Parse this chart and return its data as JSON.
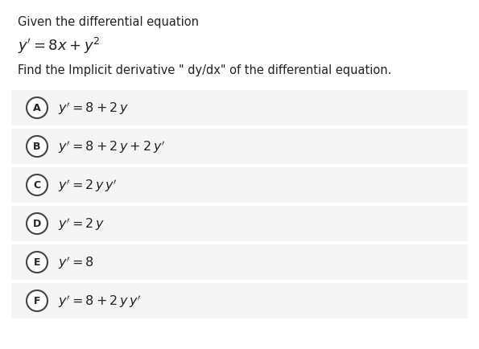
{
  "background_color": "#ffffff",
  "header_text": "Given the differential equation",
  "question": "Find the Implicit derivative \" dy/dx\" of the differential equation.",
  "options": [
    {
      "label": "A",
      "math": "y' = 8 + 2\\,y"
    },
    {
      "label": "B",
      "math": "y' = 8 + 2\\,y + 2\\,y'"
    },
    {
      "label": "C",
      "math": "y' = 2\\,y\\,y'"
    },
    {
      "label": "D",
      "math": "y' = 2\\,y"
    },
    {
      "label": "E",
      "math": "y' = 8"
    },
    {
      "label": "F",
      "math": "y' = 8 + 2\\,y\\,y'"
    }
  ],
  "option_bg_color": "#efefef",
  "option_row_bg": "#f5f5f5",
  "circle_color": "#ffffff",
  "circle_edge_color": "#444444",
  "text_color": "#222222",
  "label_color": "#222222",
  "header_fontsize": 10.5,
  "equation_fontsize": 13,
  "question_fontsize": 10.5,
  "option_fontsize": 11.5
}
